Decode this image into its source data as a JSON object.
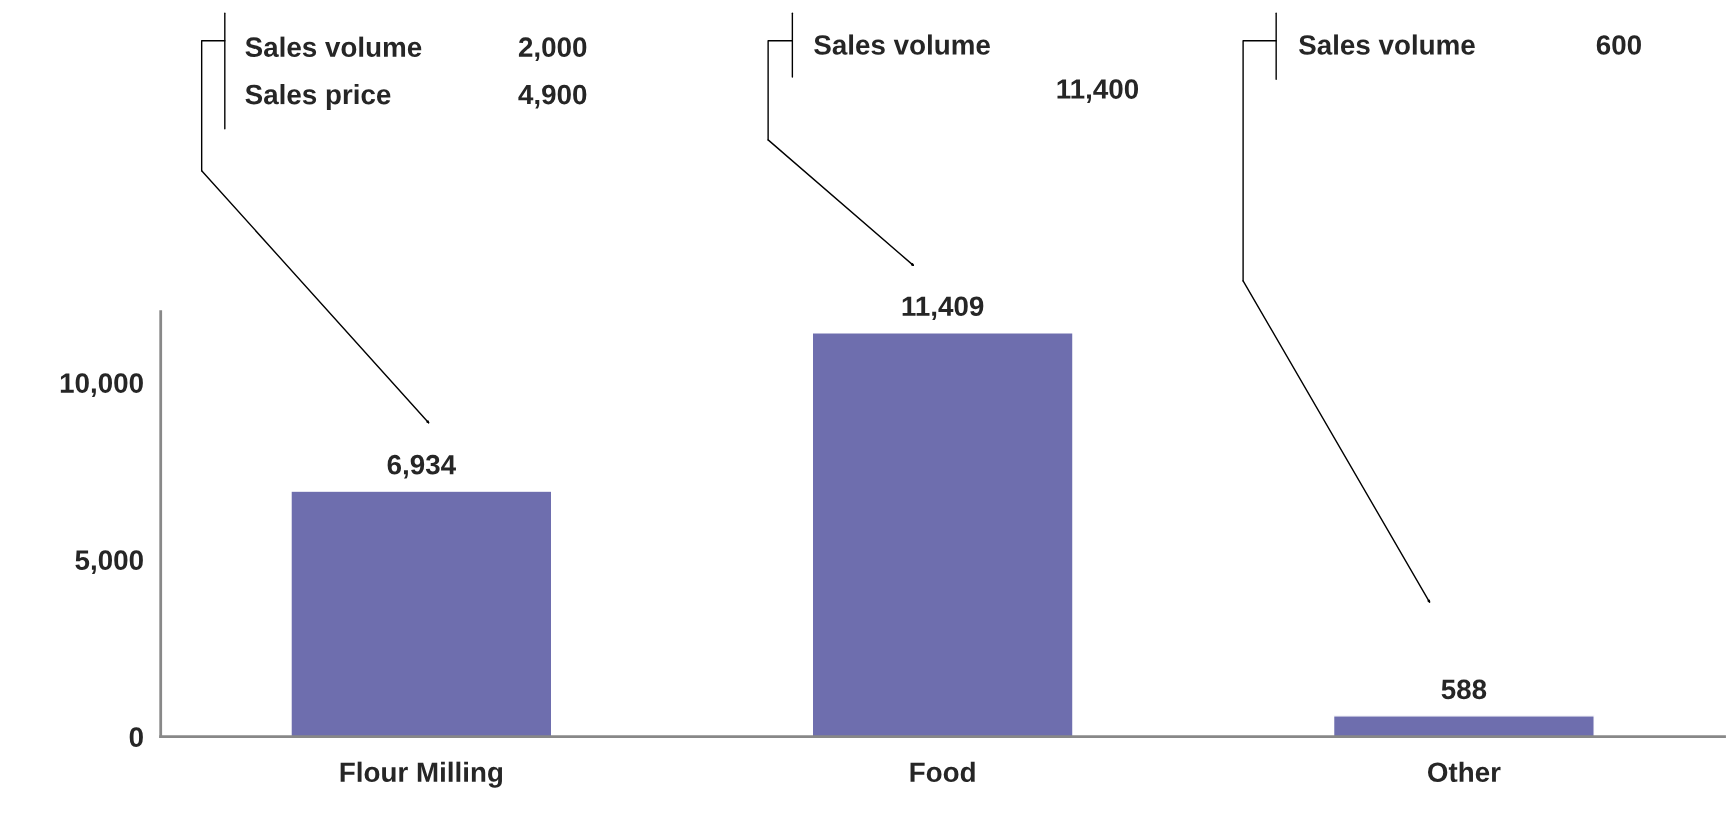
{
  "chart_data": {
    "type": "bar",
    "categories": [
      "Flour Milling",
      "Food",
      "Other"
    ],
    "values": [
      6934,
      11409,
      588
    ],
    "value_labels": [
      "6,934",
      "11,409",
      "588"
    ],
    "color": "#6e6eae",
    "ylim": [
      0,
      12000
    ],
    "yticks": [
      0,
      {
        "value": 5000,
        "label": "5,000"
      },
      {
        "value": 10000,
        "label": "10,000"
      }
    ],
    "grid": false,
    "annotations": [
      "Sales volume",
      "2,000",
      "Sales price",
      "4,900",
      "Sales volume",
      "11,400",
      "Sales volume",
      "600"
    ]
  }
}
